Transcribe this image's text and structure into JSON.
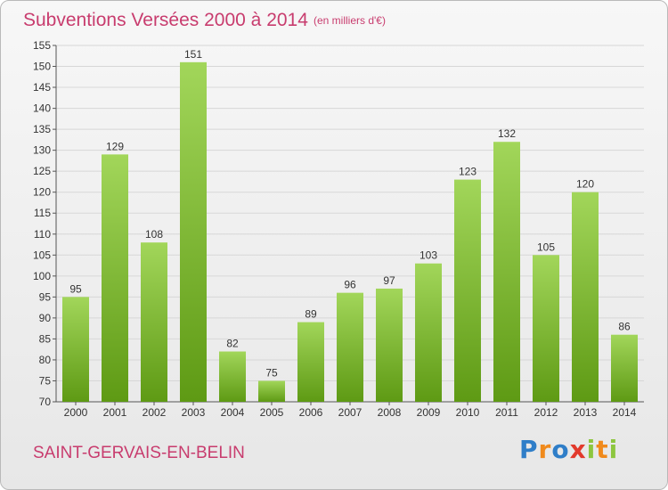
{
  "title": "Subventions Versées 2000 à 2014",
  "subtitle": "(en milliers d'€)",
  "commune": "SAINT-GERVAIS-EN-BELIN",
  "logo": [
    "P",
    "r",
    "o",
    "x",
    "i",
    "t",
    "i"
  ],
  "colors": {
    "accent": "#c83c6e",
    "bar_top": "#a2d65a",
    "bar_bottom": "#5e9a14",
    "grid": "#d7d7d7",
    "text": "#333333"
  },
  "chart_data": {
    "type": "bar",
    "categories": [
      "2000",
      "2001",
      "2002",
      "2003",
      "2004",
      "2005",
      "2006",
      "2007",
      "2008",
      "2009",
      "2010",
      "2011",
      "2012",
      "2013",
      "2014"
    ],
    "values": [
      95,
      129,
      108,
      151,
      82,
      75,
      89,
      96,
      97,
      103,
      123,
      132,
      105,
      120,
      86
    ],
    "ylim": [
      70,
      155
    ],
    "yticks": [
      70,
      75,
      80,
      85,
      90,
      95,
      100,
      105,
      110,
      115,
      120,
      125,
      130,
      135,
      140,
      145,
      150,
      155
    ],
    "grid": true,
    "xlabel": "",
    "ylabel": ""
  }
}
